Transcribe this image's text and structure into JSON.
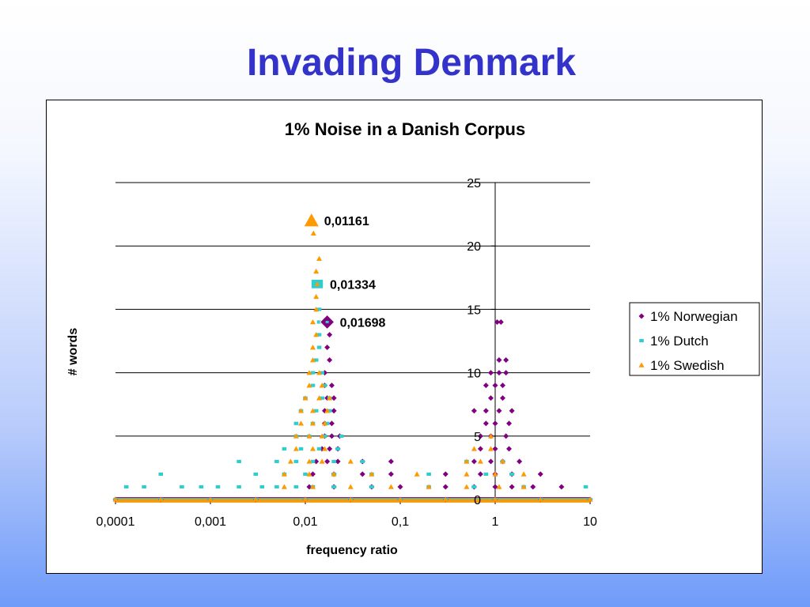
{
  "slide": {
    "title": "Invading Denmark"
  },
  "chart_data": {
    "type": "scatter",
    "title": "1% Noise in a Danish Corpus",
    "xlabel": "frequency ratio",
    "ylabel": "# words",
    "xscale": "log",
    "xlim": [
      0.0001,
      10
    ],
    "ylim": [
      0,
      25
    ],
    "x_ticks": [
      "0,0001",
      "0,001",
      "0,01",
      "0,1",
      "1",
      "10"
    ],
    "y_ticks": [
      "0",
      "5",
      "10",
      "15",
      "20",
      "25"
    ],
    "grid": "horizontal",
    "legend_position": "right",
    "series": [
      {
        "name": "1% Norwegian",
        "color": "#800080",
        "marker": "diamond",
        "points": [
          [
            0.0001,
            0
          ],
          [
            0.0003,
            0
          ],
          [
            0.001,
            0
          ],
          [
            0.003,
            0
          ],
          [
            0.01,
            0
          ],
          [
            0.03,
            0
          ],
          [
            0.1,
            0
          ],
          [
            0.3,
            0
          ],
          [
            1,
            0
          ],
          [
            3,
            0
          ],
          [
            10,
            0
          ],
          [
            0.011,
            1
          ],
          [
            0.02,
            1
          ],
          [
            0.05,
            1
          ],
          [
            0.1,
            1
          ],
          [
            0.3,
            1
          ],
          [
            0.6,
            1
          ],
          [
            1,
            1
          ],
          [
            1.5,
            1
          ],
          [
            2.5,
            1
          ],
          [
            5,
            1
          ],
          [
            0.012,
            2
          ],
          [
            0.02,
            2
          ],
          [
            0.04,
            2
          ],
          [
            0.08,
            2
          ],
          [
            0.3,
            2
          ],
          [
            0.7,
            2
          ],
          [
            1,
            2
          ],
          [
            1.5,
            2
          ],
          [
            3,
            2
          ],
          [
            0.013,
            3
          ],
          [
            0.017,
            3
          ],
          [
            0.022,
            3
          ],
          [
            0.04,
            3
          ],
          [
            0.08,
            3
          ],
          [
            0.6,
            3
          ],
          [
            0.9,
            3
          ],
          [
            1.2,
            3
          ],
          [
            1.8,
            3
          ],
          [
            0.015,
            4
          ],
          [
            0.018,
            4
          ],
          [
            0.022,
            4
          ],
          [
            0.7,
            4
          ],
          [
            1,
            4
          ],
          [
            1.4,
            4
          ],
          [
            0.016,
            5
          ],
          [
            0.019,
            5
          ],
          [
            0.023,
            5
          ],
          [
            0.7,
            5
          ],
          [
            0.9,
            5
          ],
          [
            1.3,
            5
          ],
          [
            0.016,
            6
          ],
          [
            0.019,
            6
          ],
          [
            0.8,
            6
          ],
          [
            1,
            6
          ],
          [
            1.4,
            6
          ],
          [
            0.016,
            7
          ],
          [
            0.02,
            7
          ],
          [
            0.6,
            7
          ],
          [
            0.8,
            7
          ],
          [
            1.1,
            7
          ],
          [
            1.5,
            7
          ],
          [
            0.017,
            8
          ],
          [
            0.02,
            8
          ],
          [
            0.9,
            8
          ],
          [
            1.2,
            8
          ],
          [
            0.016,
            9
          ],
          [
            0.019,
            9
          ],
          [
            0.8,
            9
          ],
          [
            1,
            9
          ],
          [
            1.2,
            9
          ],
          [
            0.016,
            10
          ],
          [
            0.9,
            10
          ],
          [
            1.1,
            10
          ],
          [
            1.3,
            10
          ],
          [
            0.018,
            11
          ],
          [
            1.1,
            11
          ],
          [
            1.3,
            11
          ],
          [
            0.017,
            12
          ],
          [
            0.018,
            13
          ],
          [
            0.01698,
            14
          ],
          [
            1.05,
            14
          ],
          [
            1.15,
            14
          ]
        ]
      },
      {
        "name": "1% Dutch",
        "color": "#33cccc",
        "marker": "square",
        "points": [
          [
            0.0001,
            0
          ],
          [
            0.0003,
            0
          ],
          [
            0.001,
            0
          ],
          [
            0.003,
            0
          ],
          [
            0.01,
            0
          ],
          [
            0.03,
            0
          ],
          [
            0.1,
            0
          ],
          [
            0.3,
            0
          ],
          [
            1,
            0
          ],
          [
            3,
            0
          ],
          [
            10,
            0
          ],
          [
            0.00013,
            1
          ],
          [
            0.0002,
            1
          ],
          [
            0.0005,
            1
          ],
          [
            0.0008,
            1
          ],
          [
            0.0012,
            1
          ],
          [
            0.002,
            1
          ],
          [
            0.0035,
            1
          ],
          [
            0.005,
            1
          ],
          [
            0.008,
            1
          ],
          [
            0.012,
            1
          ],
          [
            0.02,
            1
          ],
          [
            0.05,
            1
          ],
          [
            0.2,
            1
          ],
          [
            0.6,
            1
          ],
          [
            2,
            1
          ],
          [
            9,
            1
          ],
          [
            0.0003,
            2
          ],
          [
            0.003,
            2
          ],
          [
            0.006,
            2
          ],
          [
            0.01,
            2
          ],
          [
            0.02,
            2
          ],
          [
            0.05,
            2
          ],
          [
            0.2,
            2
          ],
          [
            0.8,
            2
          ],
          [
            1.5,
            2
          ],
          [
            0.002,
            3
          ],
          [
            0.005,
            3
          ],
          [
            0.008,
            3
          ],
          [
            0.012,
            3
          ],
          [
            0.02,
            3
          ],
          [
            0.04,
            3
          ],
          [
            0.5,
            3
          ],
          [
            1.2,
            3
          ],
          [
            0.006,
            4
          ],
          [
            0.009,
            4
          ],
          [
            0.014,
            4
          ],
          [
            0.022,
            4
          ],
          [
            0.008,
            5
          ],
          [
            0.011,
            5
          ],
          [
            0.016,
            5
          ],
          [
            0.024,
            5
          ],
          [
            0.008,
            6
          ],
          [
            0.012,
            6
          ],
          [
            0.017,
            6
          ],
          [
            0.009,
            7
          ],
          [
            0.013,
            7
          ],
          [
            0.018,
            7
          ],
          [
            0.01,
            8
          ],
          [
            0.015,
            8
          ],
          [
            0.018,
            8
          ],
          [
            0.012,
            9
          ],
          [
            0.016,
            9
          ],
          [
            0.012,
            10
          ],
          [
            0.015,
            10
          ],
          [
            0.013,
            11
          ],
          [
            0.014,
            12
          ],
          [
            0.014,
            13
          ],
          [
            0.014,
            14
          ],
          [
            0.014,
            15
          ],
          [
            0.01334,
            17
          ]
        ]
      },
      {
        "name": "1% Swedish",
        "color": "#ff9900",
        "marker": "triangle",
        "points": [
          [
            0.0001,
            0
          ],
          [
            0.0003,
            0
          ],
          [
            0.001,
            0
          ],
          [
            0.003,
            0
          ],
          [
            0.01,
            0
          ],
          [
            0.03,
            0
          ],
          [
            0.1,
            0
          ],
          [
            0.3,
            0
          ],
          [
            1,
            0
          ],
          [
            3,
            0
          ],
          [
            10,
            0
          ],
          [
            0.006,
            1
          ],
          [
            0.012,
            1
          ],
          [
            0.03,
            1
          ],
          [
            0.08,
            1
          ],
          [
            0.2,
            1
          ],
          [
            0.5,
            1
          ],
          [
            1.1,
            1
          ],
          [
            2,
            1
          ],
          [
            0.006,
            2
          ],
          [
            0.011,
            2
          ],
          [
            0.02,
            2
          ],
          [
            0.05,
            2
          ],
          [
            0.15,
            2
          ],
          [
            0.5,
            2
          ],
          [
            1,
            2
          ],
          [
            2,
            2
          ],
          [
            0.007,
            3
          ],
          [
            0.011,
            3
          ],
          [
            0.015,
            3
          ],
          [
            0.03,
            3
          ],
          [
            0.5,
            3
          ],
          [
            0.7,
            3
          ],
          [
            1.2,
            3
          ],
          [
            0.008,
            4
          ],
          [
            0.012,
            4
          ],
          [
            0.016,
            4
          ],
          [
            0.6,
            4
          ],
          [
            0.9,
            4
          ],
          [
            0.008,
            5
          ],
          [
            0.011,
            5
          ],
          [
            0.015,
            5
          ],
          [
            0.9,
            5
          ],
          [
            0.009,
            6
          ],
          [
            0.012,
            6
          ],
          [
            0.016,
            6
          ],
          [
            0.009,
            7
          ],
          [
            0.012,
            7
          ],
          [
            0.017,
            7
          ],
          [
            0.01,
            8
          ],
          [
            0.014,
            8
          ],
          [
            0.018,
            8
          ],
          [
            0.011,
            9
          ],
          [
            0.015,
            9
          ],
          [
            0.011,
            10
          ],
          [
            0.014,
            10
          ],
          [
            0.012,
            11
          ],
          [
            0.012,
            12
          ],
          [
            0.013,
            13
          ],
          [
            0.012,
            14
          ],
          [
            0.013,
            15
          ],
          [
            0.013,
            16
          ],
          [
            0.013,
            18
          ],
          [
            0.014,
            19
          ],
          [
            0.0122,
            21
          ],
          [
            0.01161,
            22
          ]
        ]
      }
    ],
    "highlighted_points": [
      {
        "series": "1% Swedish",
        "x": 0.01161,
        "y": 22,
        "label": "0,01161"
      },
      {
        "series": "1% Dutch",
        "x": 0.01334,
        "y": 17,
        "label": "0,01334"
      },
      {
        "series": "1% Norwegian",
        "x": 0.01698,
        "y": 14,
        "label": "0,01698"
      }
    ]
  }
}
